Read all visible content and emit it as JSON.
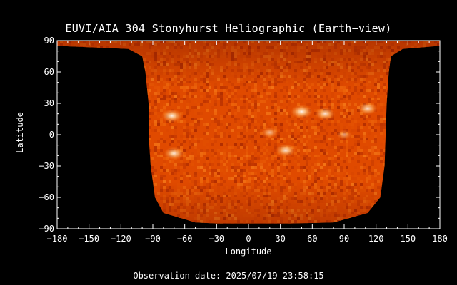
{
  "chart_data": {
    "type": "heatmap",
    "title": "EUVI/AIA 304 Stonyhurst Heliographic (Earth−view)",
    "xlabel": "Longitude",
    "ylabel": "Latitude",
    "xlim": [
      -180,
      180
    ],
    "ylim": [
      -90,
      90
    ],
    "xticks": [
      "−180",
      "−150",
      "−120",
      "−90",
      "−60",
      "−30",
      "0",
      "30",
      "60",
      "90",
      "120",
      "150",
      "180"
    ],
    "yticks": [
      "90",
      "60",
      "30",
      "0",
      "−30",
      "−60",
      "−90"
    ],
    "colormap": [
      "#3a0000",
      "#a82000",
      "#e04a00",
      "#ff7a10",
      "#ffc070",
      "#ffffff"
    ],
    "background_color": "#000000",
    "coverage_left_edge": [
      [
        90,
        -180
      ],
      [
        85,
        -180
      ],
      [
        82,
        -113
      ],
      [
        75,
        -100
      ],
      [
        60,
        -97
      ],
      [
        30,
        -94
      ],
      [
        0,
        -94
      ],
      [
        -30,
        -92
      ],
      [
        -60,
        -88
      ],
      [
        -75,
        -80
      ],
      [
        -84,
        -50
      ],
      [
        -85,
        -30
      ]
    ],
    "coverage_right_edge": [
      [
        90,
        180
      ],
      [
        85,
        180
      ],
      [
        82,
        145
      ],
      [
        75,
        134
      ],
      [
        60,
        132
      ],
      [
        30,
        130
      ],
      [
        0,
        129
      ],
      [
        -30,
        128
      ],
      [
        -60,
        124
      ],
      [
        -75,
        112
      ],
      [
        -84,
        80
      ],
      [
        -85,
        40
      ]
    ],
    "bright_regions": [
      {
        "lon": -72,
        "lat": 18,
        "intensity": 0.9
      },
      {
        "lon": -70,
        "lat": -18,
        "intensity": 0.85
      },
      {
        "lon": 35,
        "lat": -15,
        "intensity": 0.85
      },
      {
        "lon": 50,
        "lat": 22,
        "intensity": 0.95
      },
      {
        "lon": 72,
        "lat": 20,
        "intensity": 0.85
      },
      {
        "lon": 112,
        "lat": 25,
        "intensity": 0.8
      },
      {
        "lon": 20,
        "lat": 2,
        "intensity": 0.6
      },
      {
        "lon": 90,
        "lat": 0,
        "intensity": 0.5
      }
    ]
  },
  "footer": {
    "observation": "Observation date: 2025/07/19 23:58:15"
  }
}
